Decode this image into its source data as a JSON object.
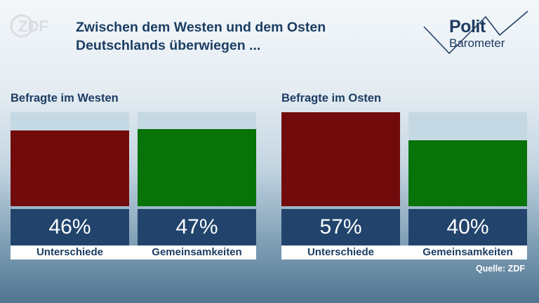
{
  "header": {
    "logo_text": "ZDF",
    "title_line1": "Zwischen dem Westen und dem Osten",
    "title_line2": "Deutschlands überwiegen ...",
    "brand_line1": "Polit",
    "brand_line2": "Barometer"
  },
  "colors": {
    "unterschiede": "#720c0c",
    "gemeinsamkeiten": "#087308",
    "track": "#c5d9e4",
    "value_box": "#22446c",
    "title": "#1c3d63"
  },
  "chart_data": [
    {
      "type": "bar",
      "title": "Befragte im Westen",
      "categories": [
        "Unterschiede",
        "Gemeinsamkeiten"
      ],
      "values": [
        46,
        47
      ],
      "value_labels": [
        "46%",
        "47%"
      ],
      "ylim": [
        0,
        57
      ],
      "grid": false
    },
    {
      "type": "bar",
      "title": "Befragte im Osten",
      "categories": [
        "Unterschiede",
        "Gemeinsamkeiten"
      ],
      "values": [
        57,
        40
      ],
      "value_labels": [
        "57%",
        "40%"
      ],
      "ylim": [
        0,
        57
      ],
      "grid": false
    }
  ],
  "footer": {
    "source": "Quelle: ZDF"
  }
}
